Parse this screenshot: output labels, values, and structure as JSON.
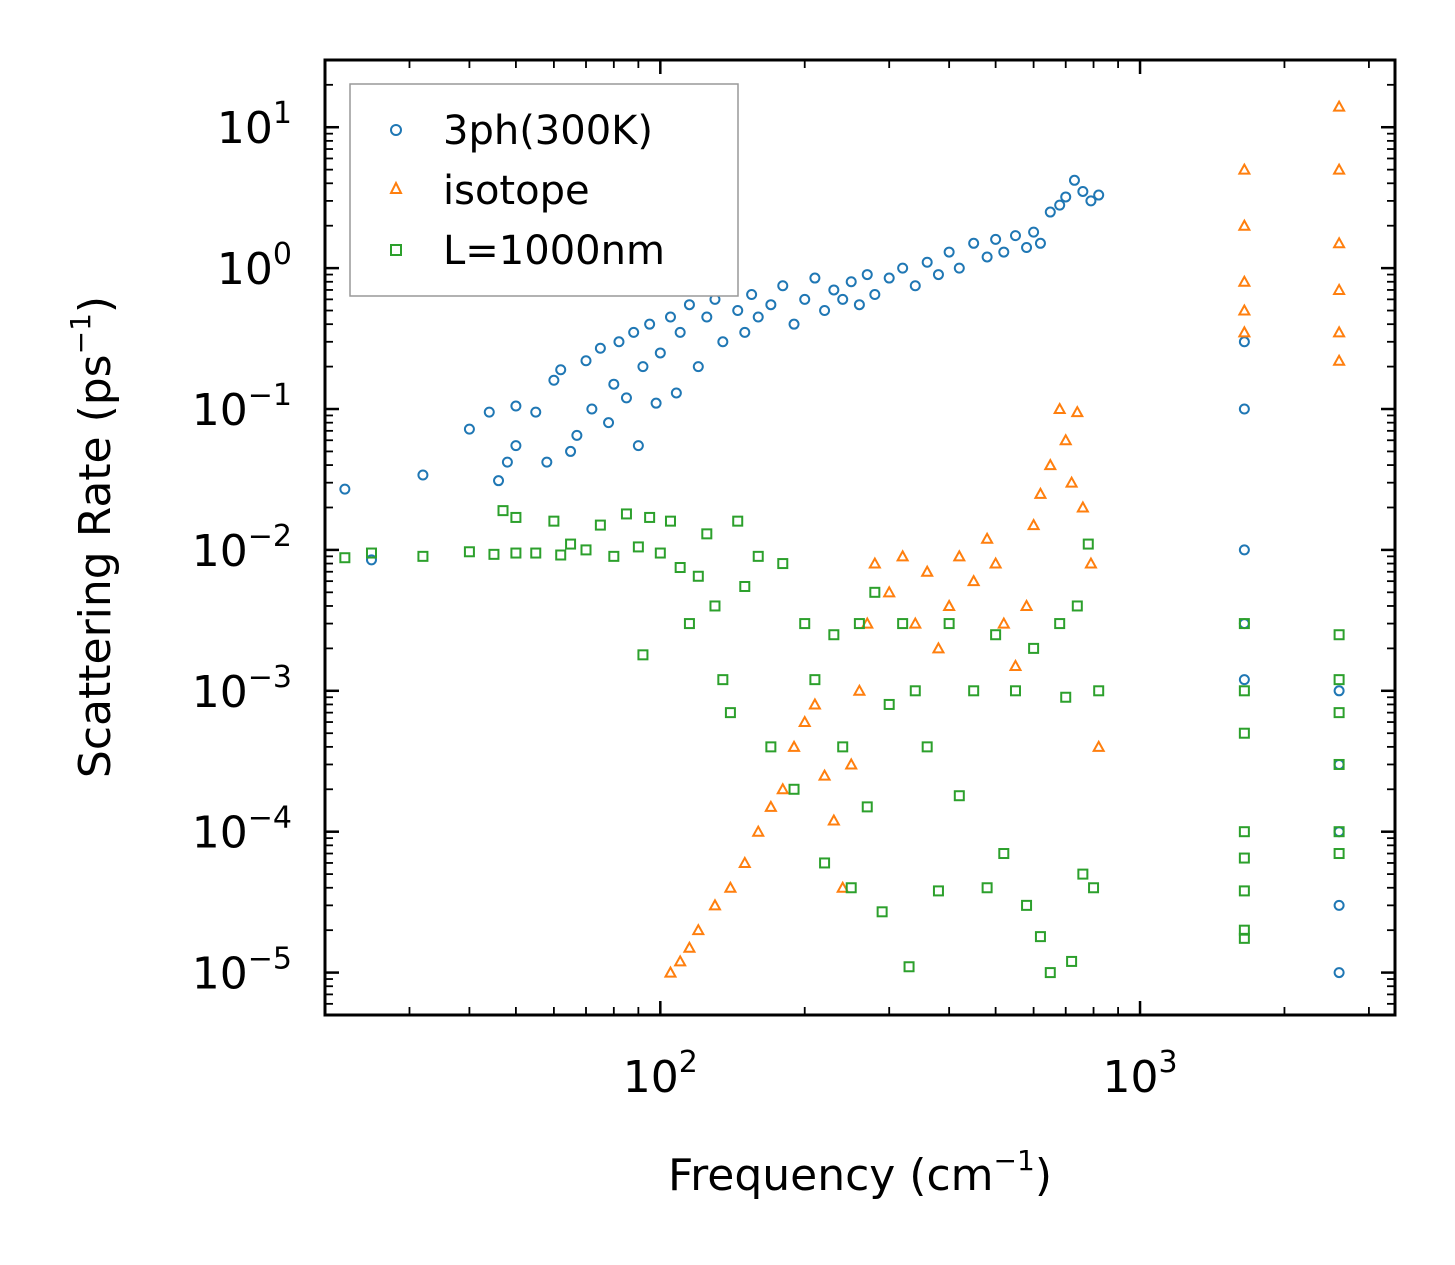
{
  "chart_data": {
    "type": "scatter",
    "xscale": "log",
    "yscale": "log",
    "xlabel": "Frequency (cm",
    "xlabel_sup": "−1",
    "xlabel_close": ")",
    "ylabel": "Scattering Rate (ps",
    "ylabel_sup": "−1",
    "ylabel_close": ")",
    "xlim": [
      20,
      3400
    ],
    "ylim": [
      5e-06,
      30
    ],
    "xticks": [
      {
        "value": 100,
        "base": "10",
        "exp": "2"
      },
      {
        "value": 1000,
        "base": "10",
        "exp": "3"
      }
    ],
    "yticks": [
      {
        "value": 10,
        "base": "10",
        "exp": "1"
      },
      {
        "value": 1,
        "base": "10",
        "exp": "0"
      },
      {
        "value": 0.1,
        "base": "10",
        "exp": "−1"
      },
      {
        "value": 0.01,
        "base": "10",
        "exp": "−2"
      },
      {
        "value": 0.001,
        "base": "10",
        "exp": "−3"
      },
      {
        "value": 0.0001,
        "base": "10",
        "exp": "−4"
      },
      {
        "value": 1e-05,
        "base": "10",
        "exp": "−5"
      }
    ],
    "legend_position": "top-left",
    "series": [
      {
        "name": "3ph(300K)",
        "marker": "circle",
        "color": "#1f77b4",
        "points": [
          [
            22,
            0.027
          ],
          [
            25,
            0.0085
          ],
          [
            32,
            0.034
          ],
          [
            40,
            0.072
          ],
          [
            44,
            0.095
          ],
          [
            46,
            0.031
          ],
          [
            48,
            0.042
          ],
          [
            50,
            0.105
          ],
          [
            50,
            0.055
          ],
          [
            55,
            0.095
          ],
          [
            58,
            0.042
          ],
          [
            60,
            0.16
          ],
          [
            62,
            0.19
          ],
          [
            65,
            0.05
          ],
          [
            67,
            0.065
          ],
          [
            70,
            0.22
          ],
          [
            72,
            0.1
          ],
          [
            75,
            0.27
          ],
          [
            78,
            0.08
          ],
          [
            80,
            0.15
          ],
          [
            82,
            0.3
          ],
          [
            85,
            0.12
          ],
          [
            88,
            0.35
          ],
          [
            90,
            0.055
          ],
          [
            92,
            0.2
          ],
          [
            95,
            0.4
          ],
          [
            98,
            0.11
          ],
          [
            100,
            0.25
          ],
          [
            105,
            0.45
          ],
          [
            108,
            0.13
          ],
          [
            110,
            0.35
          ],
          [
            115,
            0.55
          ],
          [
            120,
            0.2
          ],
          [
            125,
            0.45
          ],
          [
            130,
            0.6
          ],
          [
            135,
            0.3
          ],
          [
            140,
            0.7
          ],
          [
            145,
            0.5
          ],
          [
            150,
            0.35
          ],
          [
            155,
            0.65
          ],
          [
            160,
            0.45
          ],
          [
            170,
            0.55
          ],
          [
            180,
            0.75
          ],
          [
            190,
            0.4
          ],
          [
            200,
            0.6
          ],
          [
            210,
            0.85
          ],
          [
            220,
            0.5
          ],
          [
            230,
            0.7
          ],
          [
            240,
            0.6
          ],
          [
            250,
            0.8
          ],
          [
            260,
            0.55
          ],
          [
            270,
            0.9
          ],
          [
            280,
            0.65
          ],
          [
            300,
            0.85
          ],
          [
            320,
            1.0
          ],
          [
            340,
            0.75
          ],
          [
            360,
            1.1
          ],
          [
            380,
            0.9
          ],
          [
            400,
            1.3
          ],
          [
            420,
            1.0
          ],
          [
            450,
            1.5
          ],
          [
            480,
            1.2
          ],
          [
            500,
            1.6
          ],
          [
            520,
            1.3
          ],
          [
            550,
            1.7
          ],
          [
            580,
            1.4
          ],
          [
            600,
            1.8
          ],
          [
            620,
            1.5
          ],
          [
            650,
            2.5
          ],
          [
            680,
            2.8
          ],
          [
            700,
            3.2
          ],
          [
            730,
            4.2
          ],
          [
            760,
            3.5
          ],
          [
            790,
            3.0
          ],
          [
            820,
            3.3
          ],
          [
            1650,
            0.3
          ],
          [
            1650,
            0.1
          ],
          [
            1650,
            0.01
          ],
          [
            1650,
            0.003
          ],
          [
            1650,
            0.0012
          ],
          [
            2600,
            0.001
          ],
          [
            2600,
            0.0003
          ],
          [
            2600,
            0.0001
          ],
          [
            2600,
            3e-05
          ],
          [
            2600,
            1e-05
          ]
        ]
      },
      {
        "name": "isotope",
        "marker": "triangle",
        "color": "#ff7f0e",
        "points": [
          [
            105,
            1e-05
          ],
          [
            110,
            1.2e-05
          ],
          [
            115,
            1.5e-05
          ],
          [
            120,
            2e-05
          ],
          [
            130,
            3e-05
          ],
          [
            140,
            4e-05
          ],
          [
            150,
            6e-05
          ],
          [
            160,
            0.0001
          ],
          [
            170,
            0.00015
          ],
          [
            180,
            0.0002
          ],
          [
            190,
            0.0004
          ],
          [
            200,
            0.0006
          ],
          [
            210,
            0.0008
          ],
          [
            220,
            0.00025
          ],
          [
            230,
            0.00012
          ],
          [
            240,
            4e-05
          ],
          [
            250,
            0.0003
          ],
          [
            260,
            0.001
          ],
          [
            270,
            0.003
          ],
          [
            280,
            0.008
          ],
          [
            300,
            0.005
          ],
          [
            320,
            0.009
          ],
          [
            340,
            0.003
          ],
          [
            360,
            0.007
          ],
          [
            380,
            0.002
          ],
          [
            400,
            0.004
          ],
          [
            420,
            0.009
          ],
          [
            450,
            0.006
          ],
          [
            480,
            0.012
          ],
          [
            500,
            0.008
          ],
          [
            520,
            0.003
          ],
          [
            550,
            0.0015
          ],
          [
            580,
            0.004
          ],
          [
            600,
            0.015
          ],
          [
            620,
            0.025
          ],
          [
            650,
            0.04
          ],
          [
            680,
            0.1
          ],
          [
            700,
            0.06
          ],
          [
            720,
            0.03
          ],
          [
            740,
            0.095
          ],
          [
            760,
            0.02
          ],
          [
            790,
            0.008
          ],
          [
            820,
            0.0004
          ],
          [
            1650,
            5.0
          ],
          [
            1650,
            2.0
          ],
          [
            1650,
            0.8
          ],
          [
            1650,
            0.5
          ],
          [
            1650,
            0.35
          ],
          [
            2600,
            14.0
          ],
          [
            2600,
            5.0
          ],
          [
            2600,
            1.5
          ],
          [
            2600,
            0.7
          ],
          [
            2600,
            0.35
          ],
          [
            2600,
            0.22
          ]
        ]
      },
      {
        "name": "L=1000nm",
        "marker": "square",
        "color": "#2ca02c",
        "points": [
          [
            22,
            0.0088
          ],
          [
            25,
            0.0095
          ],
          [
            32,
            0.009
          ],
          [
            40,
            0.0097
          ],
          [
            45,
            0.0093
          ],
          [
            47,
            0.019
          ],
          [
            50,
            0.0095
          ],
          [
            50,
            0.017
          ],
          [
            55,
            0.0095
          ],
          [
            60,
            0.016
          ],
          [
            62,
            0.0092
          ],
          [
            65,
            0.011
          ],
          [
            70,
            0.01
          ],
          [
            75,
            0.015
          ],
          [
            80,
            0.009
          ],
          [
            85,
            0.018
          ],
          [
            90,
            0.0105
          ],
          [
            92,
            0.0018
          ],
          [
            95,
            0.017
          ],
          [
            100,
            0.0095
          ],
          [
            105,
            0.016
          ],
          [
            110,
            0.0075
          ],
          [
            115,
            0.003
          ],
          [
            120,
            0.0065
          ],
          [
            125,
            0.013
          ],
          [
            130,
            0.004
          ],
          [
            135,
            0.0012
          ],
          [
            140,
            0.0007
          ],
          [
            145,
            0.016
          ],
          [
            150,
            0.0055
          ],
          [
            160,
            0.009
          ],
          [
            170,
            0.0004
          ],
          [
            180,
            0.008
          ],
          [
            190,
            0.0002
          ],
          [
            200,
            0.003
          ],
          [
            210,
            0.0012
          ],
          [
            220,
            6e-05
          ],
          [
            230,
            0.0025
          ],
          [
            240,
            0.0004
          ],
          [
            250,
            4e-05
          ],
          [
            260,
            0.003
          ],
          [
            270,
            0.00015
          ],
          [
            280,
            0.005
          ],
          [
            290,
            2.7e-05
          ],
          [
            300,
            0.0008
          ],
          [
            320,
            0.003
          ],
          [
            330,
            1.1e-05
          ],
          [
            340,
            0.001
          ],
          [
            360,
            0.0004
          ],
          [
            380,
            3.8e-05
          ],
          [
            400,
            0.003
          ],
          [
            420,
            0.00018
          ],
          [
            450,
            0.001
          ],
          [
            480,
            4e-05
          ],
          [
            500,
            0.0025
          ],
          [
            520,
            7e-05
          ],
          [
            550,
            0.001
          ],
          [
            580,
            3e-05
          ],
          [
            600,
            0.002
          ],
          [
            620,
            1.8e-05
          ],
          [
            650,
            1e-05
          ],
          [
            680,
            0.003
          ],
          [
            700,
            0.0009
          ],
          [
            720,
            1.2e-05
          ],
          [
            740,
            0.004
          ],
          [
            760,
            5e-05
          ],
          [
            780,
            0.011
          ],
          [
            800,
            4e-05
          ],
          [
            820,
            0.001
          ],
          [
            1650,
            0.003
          ],
          [
            1650,
            0.001
          ],
          [
            1650,
            0.0005
          ],
          [
            1650,
            0.0001
          ],
          [
            1650,
            6.5e-05
          ],
          [
            1650,
            3.8e-05
          ],
          [
            1650,
            2e-05
          ],
          [
            1650,
            1.75e-05
          ],
          [
            2600,
            0.0025
          ],
          [
            2600,
            0.0012
          ],
          [
            2600,
            0.0007
          ],
          [
            2600,
            0.0003
          ],
          [
            2600,
            0.0001
          ],
          [
            2600,
            7e-05
          ]
        ]
      }
    ]
  }
}
